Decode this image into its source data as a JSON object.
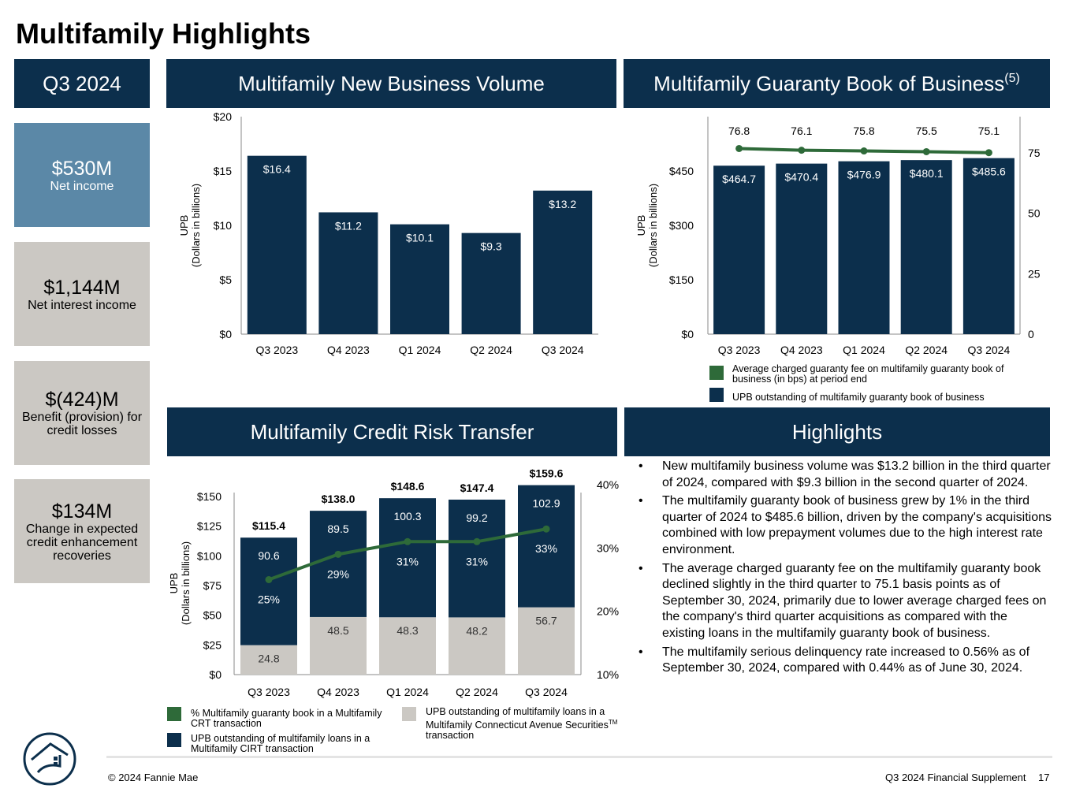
{
  "page_title": "Multifamily Highlights",
  "colors": {
    "navy": "#0c2f4c",
    "green": "#2e6a39",
    "gray": "#cbc8c3",
    "kpi_blue": "#5b88a7"
  },
  "headers": {
    "quarter": "Q3 2024",
    "new_business": "Multifamily New Business Volume",
    "guaranty_book": "Multifamily Guaranty Book of Business",
    "guaranty_book_note": "(5)",
    "crt": "Multifamily Credit Risk Transfer",
    "highlights": "Highlights"
  },
  "kpis": [
    {
      "value": "$530M",
      "label": "Net income"
    },
    {
      "value": "$1,144M",
      "label": "Net interest income"
    },
    {
      "value": "$(424)M",
      "label": "Benefit (provision) for credit losses"
    },
    {
      "value": "$134M",
      "label": "Change in expected credit enhancement recoveries"
    }
  ],
  "highlights": [
    "New multifamily business volume was $13.2 billion in the third quarter of 2024, compared with $9.3 billion in the second quarter of 2024.",
    "The multifamily guaranty book of business grew by 1% in the third quarter of 2024 to $485.6 billion, driven by the company's acquisitions combined with low prepayment volumes due to the high interest rate environment.",
    "The average charged guaranty fee on the multifamily guaranty book declined slightly in the third quarter to 75.1 basis points as of September 30, 2024, primarily due to lower average charged fees on the company's third quarter acquisitions as compared with the existing loans in the multifamily guaranty book of business.",
    "The multifamily serious delinquency rate increased to 0.56% as of September 30, 2024, compared with 0.44% as of June 30, 2024."
  ],
  "bullet": "•",
  "legends": {
    "gbook_fee": "Average charged guaranty fee on multifamily guaranty book of business (in bps) at period end",
    "gbook_upb": "UPB outstanding of multifamily guaranty book of business",
    "crt_pct": "% Multifamily guaranty book in a Multifamily CRT transaction",
    "crt_cirt": "UPB outstanding of multifamily loans in a Multifamily CIRT transaction",
    "crt_cas": "UPB outstanding of multifamily loans in a Multifamily Connecticut Avenue Securities",
    "crt_cas_tm": "TM",
    "crt_cas_end": "transaction"
  },
  "footer": {
    "copyright": "© 2024 Fannie Mae",
    "doc": "Q3 2024 Financial Supplement",
    "page": "17"
  },
  "chart_data": [
    {
      "id": "new_business",
      "type": "bar",
      "categories": [
        "Q3 2023",
        "Q4 2023",
        "Q1 2024",
        "Q2 2024",
        "Q3 2024"
      ],
      "values": [
        16.4,
        11.2,
        10.1,
        9.3,
        13.2
      ],
      "labels": [
        "$16.4",
        "$11.2",
        "$10.1",
        "$9.3",
        "$13.2"
      ],
      "ylim": [
        0,
        20
      ],
      "yticks": [
        "$0",
        "$5",
        "$10",
        "$15",
        "$20"
      ],
      "ylabel": "UPB",
      "ylabel2": "(Dollars in billions)"
    },
    {
      "id": "guaranty_book",
      "type": "bar",
      "categories": [
        "Q3 2023",
        "Q4 2023",
        "Q1 2024",
        "Q2 2024",
        "Q3 2024"
      ],
      "values": [
        464.7,
        470.4,
        476.9,
        480.1,
        485.6
      ],
      "labels": [
        "$464.7",
        "$470.4",
        "$476.9",
        "$480.1",
        "$485.6"
      ],
      "ylim": [
        0,
        600
      ],
      "yticks": [
        "$0",
        "$150",
        "$300",
        "$450"
      ],
      "ylabel": "UPB",
      "ylabel2": "(Dollars in billions)",
      "line_series": {
        "name": "Average charged guaranty fee (bps)",
        "values": [
          76.8,
          76.1,
          75.8,
          75.5,
          75.1
        ],
        "labels": [
          "76.8",
          "76.1",
          "75.8",
          "75.5",
          "75.1"
        ]
      },
      "y2lim": [
        0,
        90
      ],
      "y2ticks": [
        "0",
        "25",
        "50",
        "75"
      ]
    },
    {
      "id": "crt",
      "type": "bar",
      "stacked": true,
      "categories": [
        "Q3 2023",
        "Q4 2023",
        "Q1 2024",
        "Q2 2024",
        "Q3 2024"
      ],
      "series": [
        {
          "name": "UPB CAS",
          "values": [
            24.8,
            48.5,
            48.3,
            48.2,
            56.7
          ],
          "labels": [
            "24.8",
            "48.5",
            "48.3",
            "48.2",
            "56.7"
          ]
        },
        {
          "name": "UPB CIRT",
          "values": [
            90.6,
            89.5,
            100.3,
            99.2,
            102.9
          ],
          "labels": [
            "90.6",
            "89.5",
            "100.3",
            "99.2",
            "102.9"
          ]
        }
      ],
      "totals": [
        "$115.4",
        "$138.0",
        "$148.6",
        "$147.4",
        "$159.6"
      ],
      "line_series": {
        "name": "% Multifamily guaranty book in CRT",
        "values": [
          25,
          29,
          31,
          31,
          33
        ],
        "labels": [
          "25%",
          "29%",
          "31%",
          "31%",
          "33%"
        ]
      },
      "ylim": [
        0,
        160
      ],
      "yticks": [
        "$0",
        "$25",
        "$50",
        "$75",
        "$100",
        "$125",
        "$150"
      ],
      "y2lim": [
        10,
        40
      ],
      "y2ticks": [
        "10%",
        "20%",
        "30%",
        "40%"
      ],
      "ylabel": "UPB",
      "ylabel2": "(Dollars in billions)"
    }
  ]
}
